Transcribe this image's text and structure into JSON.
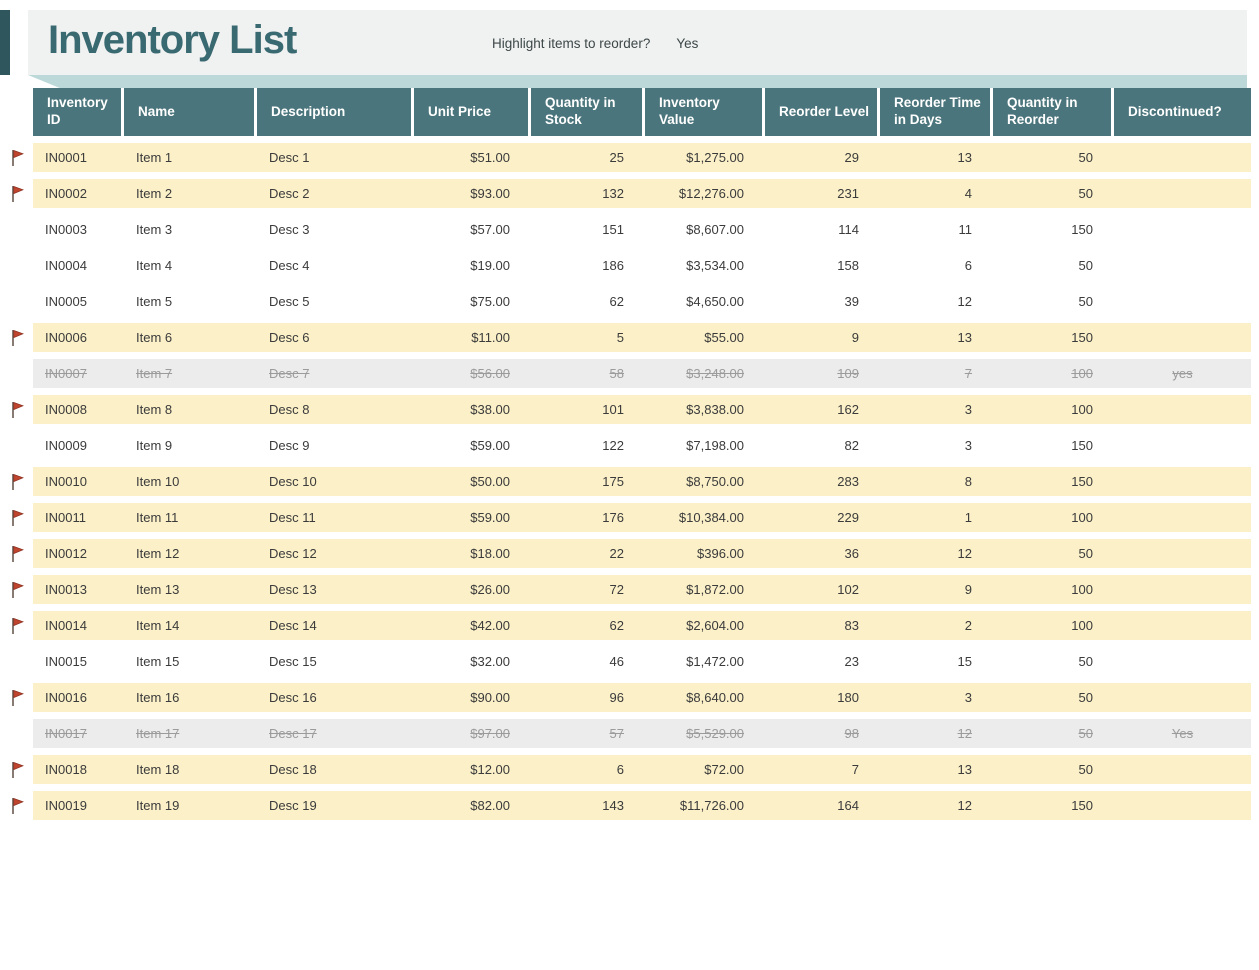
{
  "header": {
    "title": "Inventory List",
    "highlight_question": "Highlight items to reorder?",
    "highlight_answer": "Yes"
  },
  "colors": {
    "accent_bar": "#2e565c",
    "title_teal": "#3a6a71",
    "header_cell_teal": "#4b757c",
    "shadow_strip": "#bdd8d9",
    "panel_gray": "#f0f1f1",
    "row_reorder_yellow": "#fbf0c8",
    "row_discontinued_gray": "#ececec",
    "discontinued_text": "#9b9b9b",
    "flag_red": "#c0452f"
  },
  "table": {
    "columns": [
      {
        "label": "Inventory ID",
        "align": "left"
      },
      {
        "label": "Name",
        "align": "left"
      },
      {
        "label": "Description",
        "align": "left"
      },
      {
        "label": "Unit Price",
        "align": "right"
      },
      {
        "label": "Quantity in Stock",
        "align": "right"
      },
      {
        "label": "Inventory Value",
        "align": "right"
      },
      {
        "label": "Reorder Level",
        "align": "right"
      },
      {
        "label": "Reorder Time in Days",
        "align": "right"
      },
      {
        "label": "Quantity in Reorder",
        "align": "right"
      },
      {
        "label": "Discontinued?",
        "align": "center"
      }
    ],
    "rows": [
      {
        "cells": [
          "IN0001",
          "Item 1",
          "Desc 1",
          "$51.00",
          "25",
          "$1,275.00",
          "29",
          "13",
          "50",
          ""
        ],
        "state": "reorder",
        "flag": true
      },
      {
        "cells": [
          "IN0002",
          "Item 2",
          "Desc 2",
          "$93.00",
          "132",
          "$12,276.00",
          "231",
          "4",
          "50",
          ""
        ],
        "state": "reorder",
        "flag": true
      },
      {
        "cells": [
          "IN0003",
          "Item 3",
          "Desc 3",
          "$57.00",
          "151",
          "$8,607.00",
          "114",
          "11",
          "150",
          ""
        ],
        "state": "normal",
        "flag": false
      },
      {
        "cells": [
          "IN0004",
          "Item 4",
          "Desc 4",
          "$19.00",
          "186",
          "$3,534.00",
          "158",
          "6",
          "50",
          ""
        ],
        "state": "normal",
        "flag": false
      },
      {
        "cells": [
          "IN0005",
          "Item 5",
          "Desc 5",
          "$75.00",
          "62",
          "$4,650.00",
          "39",
          "12",
          "50",
          ""
        ],
        "state": "normal",
        "flag": false
      },
      {
        "cells": [
          "IN0006",
          "Item 6",
          "Desc 6",
          "$11.00",
          "5",
          "$55.00",
          "9",
          "13",
          "150",
          ""
        ],
        "state": "reorder",
        "flag": true
      },
      {
        "cells": [
          "IN0007",
          "Item 7",
          "Desc 7",
          "$56.00",
          "58",
          "$3,248.00",
          "109",
          "7",
          "100",
          "yes"
        ],
        "state": "discontinued",
        "flag": false
      },
      {
        "cells": [
          "IN0008",
          "Item 8",
          "Desc 8",
          "$38.00",
          "101",
          "$3,838.00",
          "162",
          "3",
          "100",
          ""
        ],
        "state": "reorder",
        "flag": true
      },
      {
        "cells": [
          "IN0009",
          "Item 9",
          "Desc 9",
          "$59.00",
          "122",
          "$7,198.00",
          "82",
          "3",
          "150",
          ""
        ],
        "state": "normal",
        "flag": false
      },
      {
        "cells": [
          "IN0010",
          "Item 10",
          "Desc 10",
          "$50.00",
          "175",
          "$8,750.00",
          "283",
          "8",
          "150",
          ""
        ],
        "state": "reorder",
        "flag": true
      },
      {
        "cells": [
          "IN0011",
          "Item 11",
          "Desc 11",
          "$59.00",
          "176",
          "$10,384.00",
          "229",
          "1",
          "100",
          ""
        ],
        "state": "reorder",
        "flag": true
      },
      {
        "cells": [
          "IN0012",
          "Item 12",
          "Desc 12",
          "$18.00",
          "22",
          "$396.00",
          "36",
          "12",
          "50",
          ""
        ],
        "state": "reorder",
        "flag": true
      },
      {
        "cells": [
          "IN0013",
          "Item 13",
          "Desc 13",
          "$26.00",
          "72",
          "$1,872.00",
          "102",
          "9",
          "100",
          ""
        ],
        "state": "reorder",
        "flag": true
      },
      {
        "cells": [
          "IN0014",
          "Item 14",
          "Desc 14",
          "$42.00",
          "62",
          "$2,604.00",
          "83",
          "2",
          "100",
          ""
        ],
        "state": "reorder",
        "flag": true
      },
      {
        "cells": [
          "IN0015",
          "Item 15",
          "Desc 15",
          "$32.00",
          "46",
          "$1,472.00",
          "23",
          "15",
          "50",
          ""
        ],
        "state": "normal",
        "flag": false
      },
      {
        "cells": [
          "IN0016",
          "Item 16",
          "Desc 16",
          "$90.00",
          "96",
          "$8,640.00",
          "180",
          "3",
          "50",
          ""
        ],
        "state": "reorder",
        "flag": true
      },
      {
        "cells": [
          "IN0017",
          "Item 17",
          "Desc 17",
          "$97.00",
          "57",
          "$5,529.00",
          "98",
          "12",
          "50",
          "Yes"
        ],
        "state": "discontinued",
        "flag": false
      },
      {
        "cells": [
          "IN0018",
          "Item 18",
          "Desc 18",
          "$12.00",
          "6",
          "$72.00",
          "7",
          "13",
          "50",
          ""
        ],
        "state": "reorder",
        "flag": true
      },
      {
        "cells": [
          "IN0019",
          "Item 19",
          "Desc 19",
          "$82.00",
          "143",
          "$11,726.00",
          "164",
          "12",
          "150",
          ""
        ],
        "state": "reorder",
        "flag": true
      }
    ]
  }
}
